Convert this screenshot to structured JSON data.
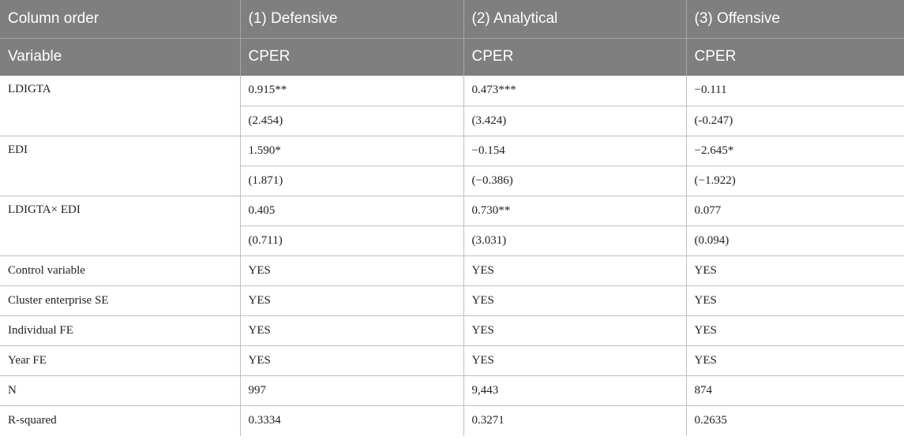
{
  "header": {
    "row1": [
      "Column order",
      "(1) Defensive",
      "(2) Analytical",
      "(3) Offensive"
    ],
    "row2": [
      "Variable",
      "CPER",
      "CPER",
      "CPER"
    ]
  },
  "coef_rows": [
    {
      "variable": "LDIGTA",
      "coef": [
        "0.915**",
        "0.473***",
        "−0.111"
      ],
      "t": [
        "(2.454)",
        "(3.424)",
        "(-0.247)"
      ]
    },
    {
      "variable": "EDI",
      "coef": [
        "1.590*",
        "−0.154",
        "−2.645*"
      ],
      "t": [
        "(1.871)",
        "(−0.386)",
        "(−1.922)"
      ]
    },
    {
      "variable": "LDIGTA× EDI",
      "coef": [
        "0.405",
        "0.730**",
        "0.077"
      ],
      "t": [
        "(0.711)",
        "(3.031)",
        "(0.094)"
      ]
    }
  ],
  "stat_rows": [
    {
      "label": "Control variable",
      "values": [
        "YES",
        "YES",
        "YES"
      ]
    },
    {
      "label": "Cluster enterprise SE",
      "values": [
        "YES",
        "YES",
        "YES"
      ]
    },
    {
      "label": "Individual FE",
      "values": [
        "YES",
        "YES",
        "YES"
      ]
    },
    {
      "label": "Year FE",
      "values": [
        "YES",
        "YES",
        "YES"
      ]
    },
    {
      "label": "N",
      "values": [
        "997",
        "9,443",
        "874"
      ]
    },
    {
      "label": "R-squared",
      "values": [
        "0.3334",
        "0.3271",
        "0.2635"
      ]
    }
  ],
  "colors": {
    "header_bg": "#7f7f7f",
    "header_text": "#ffffff",
    "grid": "#bfbfbf",
    "text": "#222222"
  }
}
